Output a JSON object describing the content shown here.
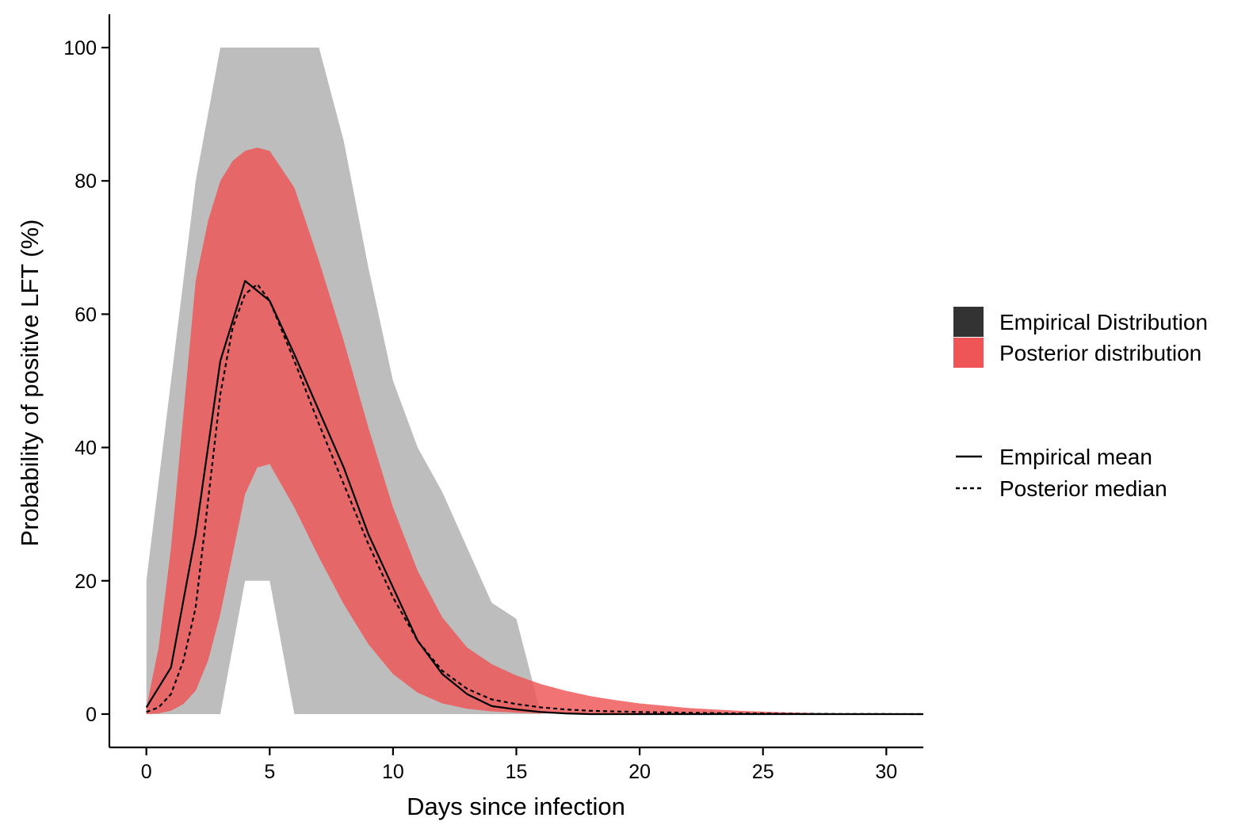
{
  "chart_data": {
    "type": "area",
    "title": "",
    "xlabel": "Days since infection",
    "ylabel": "Probability of positive LFT (%)",
    "xlim": [
      -1.5,
      31.5
    ],
    "ylim": [
      -5,
      105
    ],
    "xticks": [
      0,
      5,
      10,
      15,
      20,
      25,
      30
    ],
    "yticks": [
      0,
      20,
      40,
      60,
      80,
      100
    ],
    "grid": false,
    "legend_position": "right",
    "legend_fill": [
      {
        "label": "Empirical Distribution",
        "color": "#333333"
      },
      {
        "label": "Posterior distribution",
        "color": "#ef5456"
      }
    ],
    "legend_line": [
      {
        "label": "Empirical mean",
        "style": "solid"
      },
      {
        "label": "Posterior median",
        "style": "dashed"
      }
    ],
    "series": [
      {
        "name": "Empirical Distribution",
        "kind": "band",
        "color": "#bdbdbd",
        "x": [
          0,
          1,
          2,
          3,
          4,
          5,
          6,
          7,
          8,
          9,
          10,
          11,
          12,
          13,
          14,
          15,
          16,
          17
        ],
        "lower": [
          0,
          0,
          0,
          0,
          20,
          20,
          0,
          0,
          0,
          0,
          0,
          0,
          0,
          0,
          0,
          0,
          0,
          0
        ],
        "upper": [
          20,
          50,
          80,
          100,
          100,
          100,
          100,
          100,
          86,
          67,
          50,
          40,
          33.3,
          25,
          16.7,
          14.3,
          0,
          0
        ]
      },
      {
        "name": "Posterior distribution",
        "kind": "band",
        "color": "#ef5456",
        "x": [
          0,
          0.5,
          1,
          1.5,
          2,
          2.5,
          3,
          3.5,
          4,
          4.5,
          5,
          6,
          7,
          8,
          9,
          10,
          11,
          12,
          13,
          14,
          15,
          16,
          17,
          18,
          19,
          20,
          22,
          24,
          26,
          28,
          30,
          31.5
        ],
        "lower": [
          0,
          0.1,
          0.5,
          1.5,
          3.5,
          8,
          15,
          24,
          33,
          37,
          37.5,
          31,
          23.5,
          16.5,
          10.5,
          6,
          3.2,
          1.6,
          0.8,
          0.4,
          0.2,
          0.1,
          0.05,
          0,
          0,
          0,
          0,
          0,
          0,
          0,
          0,
          0
        ],
        "upper": [
          1,
          10,
          25,
          45,
          65,
          74,
          80,
          83,
          84.5,
          85,
          84.5,
          79,
          68,
          56,
          43,
          31,
          21.5,
          14.5,
          10,
          7.5,
          5.8,
          4.5,
          3.5,
          2.7,
          2.1,
          1.6,
          0.9,
          0.5,
          0.25,
          0.1,
          0.03,
          0
        ]
      },
      {
        "name": "Empirical mean",
        "kind": "line",
        "style": "solid",
        "x": [
          0,
          1,
          2,
          3,
          4,
          5,
          6,
          7,
          8,
          9,
          10,
          11,
          12,
          13,
          14,
          15,
          16,
          17,
          18,
          20,
          25,
          31.5
        ],
        "y": [
          1,
          7,
          27,
          53,
          65,
          62,
          54,
          45.5,
          37,
          27,
          19,
          11,
          6,
          3,
          1.2,
          0.7,
          0.3,
          0.1,
          0,
          0,
          0,
          0
        ]
      },
      {
        "name": "Posterior median",
        "kind": "line",
        "style": "dashed",
        "x": [
          0,
          0.5,
          1,
          1.5,
          2,
          2.5,
          3,
          3.5,
          4,
          4.5,
          5,
          6,
          7,
          8,
          9,
          10,
          11,
          12,
          13,
          14,
          15,
          16,
          17,
          18,
          20,
          22,
          24,
          26,
          28,
          30,
          31.5
        ],
        "y": [
          0.3,
          1,
          3,
          8,
          16,
          32,
          48,
          58,
          63,
          64.5,
          62,
          53,
          43.5,
          34.5,
          25.5,
          17.5,
          11,
          6.5,
          3.8,
          2.2,
          1.5,
          1,
          0.7,
          0.5,
          0.3,
          0.2,
          0.1,
          0.05,
          0.02,
          0.01,
          0
        ]
      }
    ]
  }
}
